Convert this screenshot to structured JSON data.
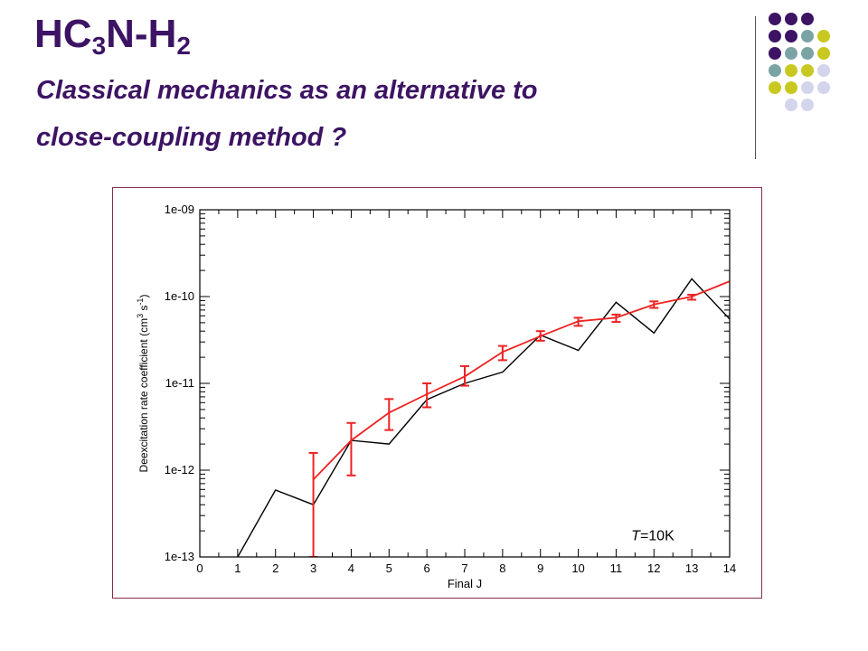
{
  "slide": {
    "title": {
      "main": "HC",
      "sub1": "3",
      "mid": "N-H",
      "sub2": "2"
    },
    "subtitle_line1": "Classical mechanics as an alternative to",
    "subtitle_line2": "close-coupling method ?"
  },
  "decoration": {
    "dot_colors": {
      "purple": "#3d1464",
      "teal": "#7aa4a4",
      "olive": "#c8c820",
      "lavender": "#d4d4ec"
    },
    "dot_rows": [
      [
        "purple",
        "purple",
        "purple"
      ],
      [
        "purple",
        "purple",
        "teal",
        "olive"
      ],
      [
        "purple",
        "teal",
        "teal",
        "olive"
      ],
      [
        "teal",
        "olive",
        "olive",
        "lavender"
      ],
      [
        "olive",
        "olive",
        "lavender",
        "lavender"
      ],
      [
        "lavender",
        "lavender"
      ]
    ]
  },
  "chart_data": {
    "type": "line",
    "xlabel": "Final J",
    "ylabel": "Deexcitation rate coefficient (cm3 s-1)",
    "ylabel_parts": {
      "main": "Deexcitation rate coefficient (cm",
      "sup1": "3",
      "mid": " s",
      "sup2": "-1",
      "end": ")"
    },
    "xlim": [
      0,
      14
    ],
    "ylim": [
      1e-13,
      1e-09
    ],
    "yscale": "log",
    "x_ticks": [
      "0",
      "1",
      "2",
      "3",
      "4",
      "5",
      "6",
      "7",
      "8",
      "9",
      "10",
      "11",
      "12",
      "13",
      "14"
    ],
    "y_ticks": [
      {
        "value": 1e-13,
        "label": "1e-13"
      },
      {
        "value": 1e-12,
        "label": "1e-12"
      },
      {
        "value": 1e-11,
        "label": "1e-11"
      },
      {
        "value": 1e-10,
        "label": "1e-10"
      },
      {
        "value": 1e-09,
        "label": "1e-09"
      }
    ],
    "annotation": {
      "italic": "T",
      "rest": "=10K"
    },
    "series": [
      {
        "color": "#000000",
        "x": [
          1,
          2,
          3,
          4,
          5,
          6,
          7,
          8,
          9,
          10,
          11,
          12,
          13,
          14
        ],
        "y": [
          1e-13,
          5.9e-13,
          4e-13,
          2.2e-12,
          2e-12,
          6.5e-12,
          1e-11,
          1.35e-11,
          3.6e-11,
          2.4e-11,
          8.6e-11,
          3.8e-11,
          1.6e-10,
          5.5e-11
        ]
      },
      {
        "color": "#ee2222",
        "x": [
          3,
          4,
          5,
          6,
          7,
          8,
          9,
          10,
          11,
          12,
          13,
          14
        ],
        "y": [
          7.8e-13,
          2.2e-12,
          4.6e-12,
          7.5e-12,
          1.2e-11,
          2.3e-11,
          3.5e-11,
          5.2e-11,
          5.7e-11,
          8.1e-11,
          1e-10,
          1.5e-10
        ],
        "err_low": [
          1e-13,
          8.7e-13,
          2.9e-12,
          5.3e-12,
          9.4e-12,
          1.85e-11,
          3.1e-11,
          4.6e-11,
          5.1e-11,
          7.4e-11,
          9.2e-11,
          1.5e-10
        ],
        "err_high": [
          1.58e-12,
          3.5e-12,
          6.6e-12,
          1e-11,
          1.58e-11,
          2.7e-11,
          4e-11,
          5.7e-11,
          6.2e-11,
          8.8e-11,
          1.05e-10,
          1.5e-10
        ]
      }
    ]
  }
}
